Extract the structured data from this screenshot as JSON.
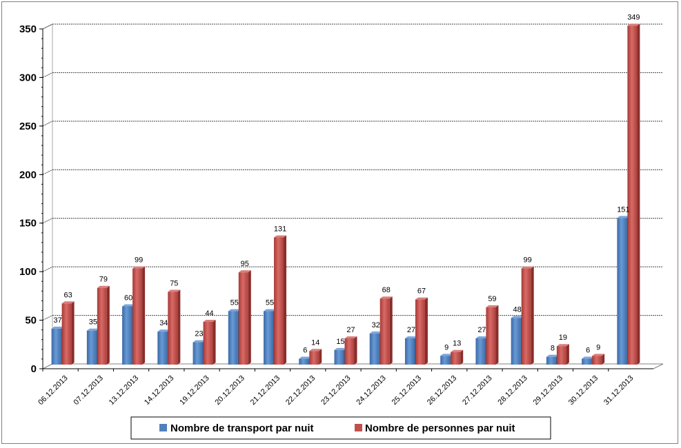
{
  "chart_data": {
    "type": "bar",
    "categories": [
      "06.12.2013",
      "07.12.2013",
      "13.12.2013",
      "14.12.2013",
      "19.12.2013",
      "20.12.2013",
      "21.12.2013",
      "22.12.2013",
      "23.12.2013",
      "24.12.2013",
      "25.12.2013",
      "26.12.2013",
      "27.12.2013",
      "28.12.2013",
      "29.12.2013",
      "30.12.2013",
      "31.12.2013"
    ],
    "series": [
      {
        "name": "Nombre de transport par nuit",
        "values": [
          37,
          35,
          60,
          34,
          23,
          55,
          55,
          6,
          15,
          32,
          27,
          9,
          27,
          48,
          8,
          6,
          151
        ],
        "color": "#4f81bd"
      },
      {
        "name": "Nombre de personnes par nuit",
        "values": [
          63,
          79,
          99,
          75,
          44,
          95,
          131,
          14,
          27,
          68,
          67,
          13,
          59,
          99,
          19,
          9,
          349
        ],
        "color": "#c0504d"
      }
    ],
    "yticks": [
      "0",
      "50",
      "100",
      "150",
      "200",
      "250",
      "300",
      "350"
    ],
    "ylim": [
      0,
      350
    ],
    "grid": true,
    "legend_position": "bottom"
  }
}
